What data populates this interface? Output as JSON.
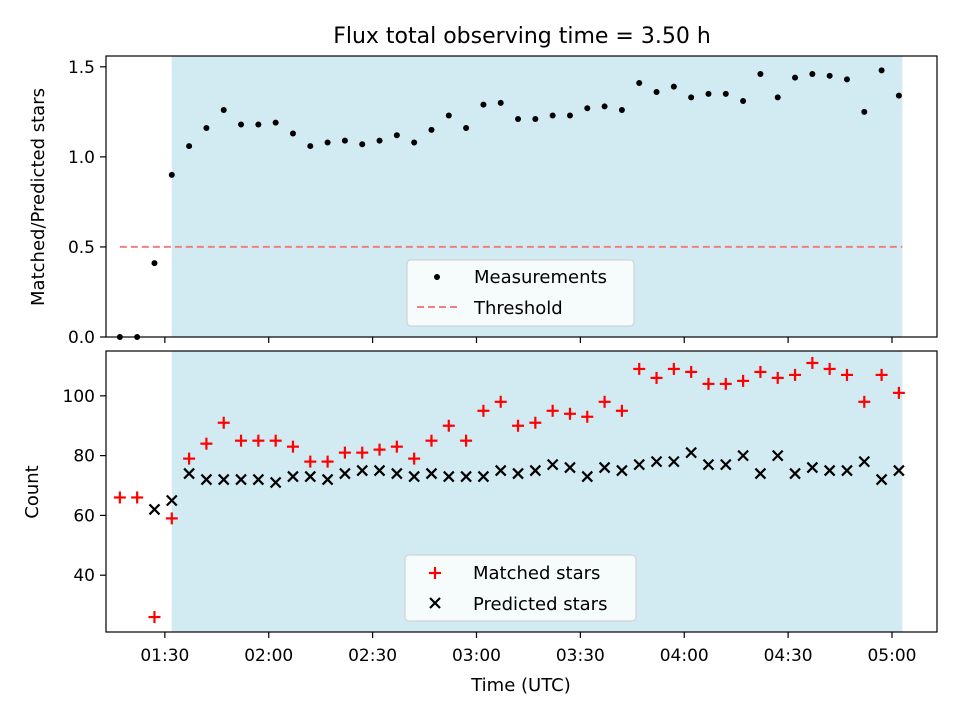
{
  "title": "Flux total observing time = 3.50 h",
  "colors": {
    "observing_band": "#add8e6",
    "measurements": "#000000",
    "threshold": "#f08080",
    "matched": "#ff0000",
    "predicted": "#000000"
  },
  "chart_data": [
    {
      "type": "scatter",
      "ylabel": "Matched/Predicted stars",
      "ylim": [
        0,
        1.56
      ],
      "yticks": [
        0.0,
        0.5,
        1.0,
        1.5
      ],
      "ytick_labels": [
        "0.0",
        "0.5",
        "1.0",
        "1.5"
      ],
      "xlim": [
        "01:13",
        "05:13"
      ],
      "shaded_region": [
        "01:32",
        "05:03"
      ],
      "legend_position": "lower-center",
      "series": [
        {
          "name": "Measurements",
          "marker": "dot",
          "points": [
            [
              "01:17",
              0.0
            ],
            [
              "01:22",
              0.0
            ],
            [
              "01:27",
              0.41
            ],
            [
              "01:32",
              0.9
            ],
            [
              "01:37",
              1.06
            ],
            [
              "01:42",
              1.16
            ],
            [
              "01:47",
              1.26
            ],
            [
              "01:52",
              1.18
            ],
            [
              "01:57",
              1.18
            ],
            [
              "02:02",
              1.19
            ],
            [
              "02:07",
              1.13
            ],
            [
              "02:12",
              1.06
            ],
            [
              "02:17",
              1.08
            ],
            [
              "02:22",
              1.09
            ],
            [
              "02:27",
              1.07
            ],
            [
              "02:32",
              1.09
            ],
            [
              "02:37",
              1.12
            ],
            [
              "02:42",
              1.08
            ],
            [
              "02:47",
              1.15
            ],
            [
              "02:52",
              1.23
            ],
            [
              "02:57",
              1.16
            ],
            [
              "03:02",
              1.29
            ],
            [
              "03:07",
              1.3
            ],
            [
              "03:12",
              1.21
            ],
            [
              "03:17",
              1.21
            ],
            [
              "03:22",
              1.23
            ],
            [
              "03:27",
              1.23
            ],
            [
              "03:32",
              1.27
            ],
            [
              "03:37",
              1.28
            ],
            [
              "03:42",
              1.26
            ],
            [
              "03:47",
              1.41
            ],
            [
              "03:52",
              1.36
            ],
            [
              "03:57",
              1.39
            ],
            [
              "04:02",
              1.33
            ],
            [
              "04:07",
              1.35
            ],
            [
              "04:12",
              1.35
            ],
            [
              "04:17",
              1.31
            ],
            [
              "04:22",
              1.46
            ],
            [
              "04:27",
              1.33
            ],
            [
              "04:32",
              1.44
            ],
            [
              "04:37",
              1.46
            ],
            [
              "04:42",
              1.45
            ],
            [
              "04:47",
              1.43
            ],
            [
              "04:52",
              1.25
            ],
            [
              "04:57",
              1.48
            ],
            [
              "05:02",
              1.34
            ]
          ]
        },
        {
          "name": "Threshold",
          "marker": "dashed-line",
          "points": [
            [
              "01:17",
              0.5
            ],
            [
              "05:03",
              0.5
            ]
          ]
        }
      ]
    },
    {
      "type": "scatter",
      "ylabel": "Count",
      "xlabel": "Time (UTC)",
      "ylim": [
        21,
        115
      ],
      "yticks": [
        40,
        60,
        80,
        100
      ],
      "ytick_labels": [
        "40",
        "60",
        "80",
        "100"
      ],
      "xlim": [
        "01:13",
        "05:13"
      ],
      "xticks": [
        "01:30",
        "02:00",
        "02:30",
        "03:00",
        "03:30",
        "04:00",
        "04:30",
        "05:00"
      ],
      "shaded_region": [
        "01:32",
        "05:03"
      ],
      "legend_position": "lower-center",
      "series": [
        {
          "name": "Matched stars",
          "marker": "plus",
          "points": [
            [
              "01:17",
              66
            ],
            [
              "01:22",
              66
            ],
            [
              "01:27",
              26
            ],
            [
              "01:32",
              59
            ],
            [
              "01:37",
              79
            ],
            [
              "01:42",
              84
            ],
            [
              "01:47",
              91
            ],
            [
              "01:52",
              85
            ],
            [
              "01:57",
              85
            ],
            [
              "02:02",
              85
            ],
            [
              "02:07",
              83
            ],
            [
              "02:12",
              78
            ],
            [
              "02:17",
              78
            ],
            [
              "02:22",
              81
            ],
            [
              "02:27",
              81
            ],
            [
              "02:32",
              82
            ],
            [
              "02:37",
              83
            ],
            [
              "02:42",
              79
            ],
            [
              "02:47",
              85
            ],
            [
              "02:52",
              90
            ],
            [
              "02:57",
              85
            ],
            [
              "03:02",
              95
            ],
            [
              "03:07",
              98
            ],
            [
              "03:12",
              90
            ],
            [
              "03:17",
              91
            ],
            [
              "03:22",
              95
            ],
            [
              "03:27",
              94
            ],
            [
              "03:32",
              93
            ],
            [
              "03:37",
              98
            ],
            [
              "03:42",
              95
            ],
            [
              "03:47",
              109
            ],
            [
              "03:52",
              106
            ],
            [
              "03:57",
              109
            ],
            [
              "04:02",
              108
            ],
            [
              "04:07",
              104
            ],
            [
              "04:12",
              104
            ],
            [
              "04:17",
              105
            ],
            [
              "04:22",
              108
            ],
            [
              "04:27",
              106
            ],
            [
              "04:32",
              107
            ],
            [
              "04:37",
              111
            ],
            [
              "04:42",
              109
            ],
            [
              "04:47",
              107
            ],
            [
              "04:52",
              98
            ],
            [
              "04:57",
              107
            ],
            [
              "05:02",
              101
            ]
          ]
        },
        {
          "name": "Predicted stars",
          "marker": "x",
          "points": [
            [
              "01:27",
              62
            ],
            [
              "01:32",
              65
            ],
            [
              "01:37",
              74
            ],
            [
              "01:42",
              72
            ],
            [
              "01:47",
              72
            ],
            [
              "01:52",
              72
            ],
            [
              "01:57",
              72
            ],
            [
              "02:02",
              71
            ],
            [
              "02:07",
              73
            ],
            [
              "02:12",
              73
            ],
            [
              "02:17",
              72
            ],
            [
              "02:22",
              74
            ],
            [
              "02:27",
              75
            ],
            [
              "02:32",
              75
            ],
            [
              "02:37",
              74
            ],
            [
              "02:42",
              73
            ],
            [
              "02:47",
              74
            ],
            [
              "02:52",
              73
            ],
            [
              "02:57",
              73
            ],
            [
              "03:02",
              73
            ],
            [
              "03:07",
              75
            ],
            [
              "03:12",
              74
            ],
            [
              "03:17",
              75
            ],
            [
              "03:22",
              77
            ],
            [
              "03:27",
              76
            ],
            [
              "03:32",
              73
            ],
            [
              "03:37",
              76
            ],
            [
              "03:42",
              75
            ],
            [
              "03:47",
              77
            ],
            [
              "03:52",
              78
            ],
            [
              "03:57",
              78
            ],
            [
              "04:02",
              81
            ],
            [
              "04:07",
              77
            ],
            [
              "04:12",
              77
            ],
            [
              "04:17",
              80
            ],
            [
              "04:22",
              74
            ],
            [
              "04:27",
              80
            ],
            [
              "04:32",
              74
            ],
            [
              "04:37",
              76
            ],
            [
              "04:42",
              75
            ],
            [
              "04:47",
              75
            ],
            [
              "04:52",
              78
            ],
            [
              "04:57",
              72
            ],
            [
              "05:02",
              75
            ]
          ]
        }
      ]
    }
  ]
}
